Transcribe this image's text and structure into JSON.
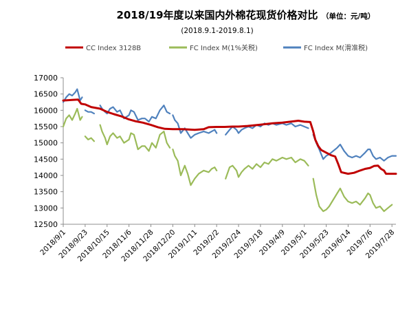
{
  "chart_data": {
    "type": "line",
    "title": "2018/19年度以来国内外棉花现货价格对比",
    "unit": "（单位：元/吨）",
    "subtitle": "(2018.9.1-2019.8.1)",
    "xlabel": "",
    "ylabel": "",
    "x_start": "2018-09-01",
    "x_end": "2019-08-01",
    "ylim": [
      12500,
      17000
    ],
    "yticks": [
      12500,
      13000,
      13500,
      14000,
      14500,
      15000,
      15500,
      16000,
      16500,
      17000
    ],
    "x_tick_labels": [
      "2018/9/1",
      "2018/9/23",
      "2018/10/15",
      "2018/11/6",
      "2018/11/28",
      "2018/12/20",
      "2019/1/11",
      "2019/2/2",
      "2019/2/24",
      "2019/3/18",
      "2019/4/9",
      "2019/5/1",
      "2019/5/23",
      "2019/6/14",
      "2019/7/6",
      "2019/7/28"
    ],
    "grid": false,
    "legend_position": "top-left",
    "series": [
      {
        "name": "CC Index 3128B",
        "color": "#c00000",
        "points": [
          [
            "2018-09-01",
            16300
          ],
          [
            "2018-09-10",
            16320
          ],
          [
            "2018-09-16",
            16330
          ],
          [
            "2018-09-19",
            16200
          ],
          [
            "2018-09-23",
            16180
          ],
          [
            "2018-09-29",
            16100
          ],
          [
            "2018-10-08",
            16050
          ],
          [
            "2018-10-15",
            15950
          ],
          [
            "2018-10-22",
            15880
          ],
          [
            "2018-10-29",
            15820
          ],
          [
            "2018-11-06",
            15720
          ],
          [
            "2018-11-13",
            15660
          ],
          [
            "2018-11-20",
            15620
          ],
          [
            "2018-11-28",
            15550
          ],
          [
            "2018-12-05",
            15480
          ],
          [
            "2018-12-12",
            15430
          ],
          [
            "2018-12-20",
            15420
          ],
          [
            "2018-12-30",
            15420
          ],
          [
            "2019-01-11",
            15400
          ],
          [
            "2019-01-20",
            15420
          ],
          [
            "2019-01-25",
            15480
          ],
          [
            "2019-02-02",
            15490
          ],
          [
            "2019-02-10",
            15490
          ],
          [
            "2019-02-18",
            15500
          ],
          [
            "2019-02-24",
            15500
          ],
          [
            "2019-03-05",
            15520
          ],
          [
            "2019-03-18",
            15560
          ],
          [
            "2019-03-30",
            15600
          ],
          [
            "2019-04-09",
            15620
          ],
          [
            "2019-04-20",
            15660
          ],
          [
            "2019-04-25",
            15680
          ],
          [
            "2019-05-01",
            15650
          ],
          [
            "2019-05-07",
            15640
          ],
          [
            "2019-05-10",
            15350
          ],
          [
            "2019-05-12",
            15100
          ],
          [
            "2019-05-15",
            14900
          ],
          [
            "2019-05-18",
            14780
          ],
          [
            "2019-05-23",
            14700
          ],
          [
            "2019-05-28",
            14620
          ],
          [
            "2019-06-01",
            14580
          ],
          [
            "2019-06-04",
            14350
          ],
          [
            "2019-06-07",
            14100
          ],
          [
            "2019-06-14",
            14050
          ],
          [
            "2019-06-20",
            14080
          ],
          [
            "2019-06-26",
            14150
          ],
          [
            "2019-07-01",
            14200
          ],
          [
            "2019-07-06",
            14230
          ],
          [
            "2019-07-10",
            14290
          ],
          [
            "2019-07-14",
            14300
          ],
          [
            "2019-07-17",
            14200
          ],
          [
            "2019-07-20",
            14150
          ],
          [
            "2019-07-22",
            14050
          ],
          [
            "2019-07-28",
            14050
          ],
          [
            "2019-08-01",
            14050
          ]
        ]
      },
      {
        "name": "FC Index M(1%关税)",
        "color": "#9bbb59",
        "segments": [
          [
            [
              "2018-09-01",
              15500
            ],
            [
              "2018-09-04",
              15750
            ],
            [
              "2018-09-07",
              15850
            ],
            [
              "2018-09-10",
              15700
            ],
            [
              "2018-09-13",
              15900
            ],
            [
              "2018-09-15",
              16050
            ],
            [
              "2018-09-18",
              15700
            ],
            [
              "2018-09-20",
              15800
            ]
          ],
          [
            [
              "2018-09-23",
              15200
            ],
            [
              "2018-09-26",
              15100
            ],
            [
              "2018-09-29",
              15150
            ],
            [
              "2018-10-02",
              15050
            ]
          ],
          [
            [
              "2018-10-08",
              15550
            ],
            [
              "2018-10-10",
              15350
            ],
            [
              "2018-10-13",
              15150
            ],
            [
              "2018-10-15",
              14950
            ],
            [
              "2018-10-18",
              15200
            ],
            [
              "2018-10-21",
              15300
            ],
            [
              "2018-10-25",
              15150
            ],
            [
              "2018-10-28",
              15200
            ],
            [
              "2018-11-01",
              15000
            ],
            [
              "2018-11-06",
              15100
            ],
            [
              "2018-11-08",
              15300
            ],
            [
              "2018-11-11",
              15250
            ],
            [
              "2018-11-15",
              14800
            ],
            [
              "2018-11-19",
              14900
            ],
            [
              "2018-11-22",
              14900
            ],
            [
              "2018-11-26",
              14750
            ],
            [
              "2018-11-29",
              15000
            ],
            [
              "2018-12-03",
              14850
            ],
            [
              "2018-12-07",
              15250
            ],
            [
              "2018-12-11",
              15350
            ],
            [
              "2018-12-14",
              15000
            ],
            [
              "2018-12-17",
              14850
            ]
          ],
          [
            [
              "2018-12-20",
              14800
            ],
            [
              "2018-12-22",
              14600
            ],
            [
              "2018-12-25",
              14450
            ],
            [
              "2018-12-28",
              14000
            ],
            [
              "2019-01-01",
              14300
            ],
            [
              "2019-01-04",
              14050
            ],
            [
              "2019-01-07",
              13700
            ],
            [
              "2019-01-11",
              13900
            ],
            [
              "2019-01-15",
              14050
            ],
            [
              "2019-01-20",
              14150
            ],
            [
              "2019-01-25",
              14100
            ],
            [
              "2019-01-28",
              14200
            ],
            [
              "2019-01-31",
              14250
            ],
            [
              "2019-02-02",
              14150
            ]
          ],
          [
            [
              "2019-02-11",
              13900
            ],
            [
              "2019-02-15",
              14250
            ],
            [
              "2019-02-18",
              14300
            ],
            [
              "2019-02-22",
              14150
            ],
            [
              "2019-02-24",
              13950
            ],
            [
              "2019-02-27",
              14100
            ],
            [
              "2019-03-02",
              14200
            ],
            [
              "2019-03-06",
              14300
            ],
            [
              "2019-03-10",
              14200
            ],
            [
              "2019-03-14",
              14350
            ],
            [
              "2019-03-18",
              14250
            ],
            [
              "2019-03-22",
              14400
            ],
            [
              "2019-03-26",
              14350
            ],
            [
              "2019-03-30",
              14500
            ],
            [
              "2019-04-03",
              14450
            ],
            [
              "2019-04-09",
              14550
            ],
            [
              "2019-04-13",
              14500
            ],
            [
              "2019-04-18",
              14550
            ],
            [
              "2019-04-22",
              14400
            ],
            [
              "2019-04-27",
              14500
            ],
            [
              "2019-05-01",
              14450
            ],
            [
              "2019-05-05",
              14300
            ]
          ],
          [
            [
              "2019-05-10",
              13900
            ],
            [
              "2019-05-13",
              13400
            ],
            [
              "2019-05-16",
              13050
            ],
            [
              "2019-05-20",
              12900
            ],
            [
              "2019-05-23",
              12950
            ],
            [
              "2019-05-26",
              13050
            ],
            [
              "2019-05-30",
              13250
            ],
            [
              "2019-06-03",
              13450
            ],
            [
              "2019-06-06",
              13600
            ],
            [
              "2019-06-10",
              13350
            ],
            [
              "2019-06-14",
              13200
            ],
            [
              "2019-06-18",
              13150
            ],
            [
              "2019-06-22",
              13200
            ],
            [
              "2019-06-26",
              13100
            ],
            [
              "2019-07-01",
              13300
            ],
            [
              "2019-07-04",
              13450
            ],
            [
              "2019-07-06",
              13400
            ],
            [
              "2019-07-09",
              13150
            ],
            [
              "2019-07-12",
              13000
            ],
            [
              "2019-07-16",
              13050
            ],
            [
              "2019-07-20",
              12900
            ],
            [
              "2019-07-24",
              13000
            ],
            [
              "2019-07-28",
              13100
            ]
          ]
        ]
      },
      {
        "name": "FC Index M(滑准税)",
        "color": "#4f81bd",
        "segments": [
          [
            [
              "2018-09-01",
              16250
            ],
            [
              "2018-09-04",
              16400
            ],
            [
              "2018-09-07",
              16500
            ],
            [
              "2018-09-10",
              16450
            ],
            [
              "2018-09-13",
              16550
            ],
            [
              "2018-09-15",
              16650
            ],
            [
              "2018-09-18",
              16300
            ],
            [
              "2018-09-20",
              16400
            ]
          ],
          [
            [
              "2018-09-23",
              16000
            ],
            [
              "2018-09-26",
              15950
            ],
            [
              "2018-09-29",
              15950
            ],
            [
              "2018-10-02",
              15900
            ]
          ],
          [
            [
              "2018-10-08",
              16150
            ],
            [
              "2018-10-10",
              16050
            ],
            [
              "2018-10-13",
              15950
            ],
            [
              "2018-10-15",
              15900
            ],
            [
              "2018-10-18",
              16050
            ],
            [
              "2018-10-21",
              16100
            ],
            [
              "2018-10-25",
              15950
            ],
            [
              "2018-10-28",
              16000
            ],
            [
              "2018-11-01",
              15750
            ],
            [
              "2018-11-06",
              15850
            ],
            [
              "2018-11-08",
              16000
            ],
            [
              "2018-11-11",
              15950
            ],
            [
              "2018-11-15",
              15700
            ],
            [
              "2018-11-19",
              15750
            ],
            [
              "2018-11-22",
              15750
            ],
            [
              "2018-11-26",
              15650
            ],
            [
              "2018-11-29",
              15800
            ],
            [
              "2018-12-03",
              15750
            ],
            [
              "2018-12-07",
              16000
            ],
            [
              "2018-12-11",
              16150
            ],
            [
              "2018-12-14",
              15950
            ],
            [
              "2018-12-17",
              15900
            ]
          ],
          [
            [
              "2018-12-20",
              15850
            ],
            [
              "2018-12-22",
              15700
            ],
            [
              "2018-12-25",
              15600
            ],
            [
              "2018-12-28",
              15300
            ],
            [
              "2019-01-01",
              15450
            ],
            [
              "2019-01-04",
              15300
            ],
            [
              "2019-01-07",
              15150
            ],
            [
              "2019-01-11",
              15250
            ],
            [
              "2019-01-15",
              15300
            ],
            [
              "2019-01-20",
              15350
            ],
            [
              "2019-01-25",
              15300
            ],
            [
              "2019-01-28",
              15350
            ],
            [
              "2019-01-31",
              15400
            ],
            [
              "2019-02-02",
              15300
            ]
          ],
          [
            [
              "2019-02-11",
              15250
            ],
            [
              "2019-02-15",
              15400
            ],
            [
              "2019-02-18",
              15500
            ],
            [
              "2019-02-22",
              15400
            ],
            [
              "2019-02-24",
              15300
            ],
            [
              "2019-02-27",
              15400
            ],
            [
              "2019-03-02",
              15450
            ],
            [
              "2019-03-06",
              15500
            ],
            [
              "2019-03-10",
              15450
            ],
            [
              "2019-03-14",
              15550
            ],
            [
              "2019-03-18",
              15500
            ],
            [
              "2019-03-22",
              15600
            ],
            [
              "2019-03-26",
              15550
            ],
            [
              "2019-03-30",
              15600
            ],
            [
              "2019-04-03",
              15550
            ],
            [
              "2019-04-09",
              15600
            ],
            [
              "2019-04-13",
              15550
            ],
            [
              "2019-04-18",
              15600
            ],
            [
              "2019-04-22",
              15500
            ],
            [
              "2019-04-27",
              15550
            ],
            [
              "2019-05-01",
              15500
            ],
            [
              "2019-05-05",
              15450
            ]
          ],
          [
            [
              "2019-05-10",
              15250
            ],
            [
              "2019-05-13",
              15000
            ],
            [
              "2019-05-16",
              14800
            ],
            [
              "2019-05-20",
              14500
            ],
            [
              "2019-05-23",
              14600
            ],
            [
              "2019-05-26",
              14650
            ],
            [
              "2019-05-30",
              14750
            ],
            [
              "2019-06-03",
              14850
            ],
            [
              "2019-06-06",
              14950
            ],
            [
              "2019-06-10",
              14750
            ],
            [
              "2019-06-14",
              14600
            ],
            [
              "2019-06-18",
              14550
            ],
            [
              "2019-06-22",
              14600
            ],
            [
              "2019-06-26",
              14550
            ],
            [
              "2019-07-01",
              14700
            ],
            [
              "2019-07-04",
              14800
            ],
            [
              "2019-07-06",
              14800
            ],
            [
              "2019-07-09",
              14600
            ],
            [
              "2019-07-12",
              14500
            ],
            [
              "2019-07-16",
              14550
            ],
            [
              "2019-07-20",
              14450
            ],
            [
              "2019-07-24",
              14550
            ],
            [
              "2019-07-28",
              14600
            ],
            [
              "2019-08-01",
              14600
            ]
          ]
        ]
      }
    ]
  }
}
